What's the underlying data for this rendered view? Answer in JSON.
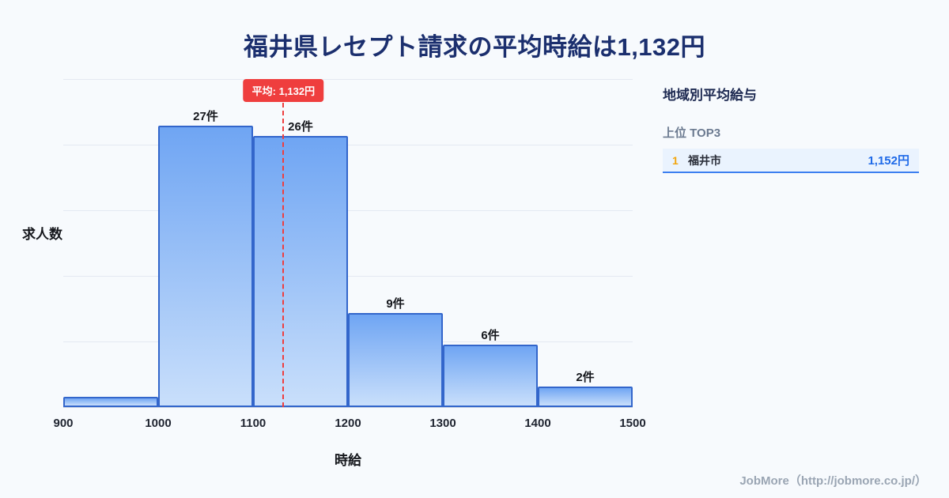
{
  "title": "福井県レセプト請求の平均時給は1,132円",
  "chart_data": {
    "type": "bar",
    "subtype": "histogram",
    "categories": [
      "900-1000",
      "1000-1100",
      "1100-1200",
      "1200-1300",
      "1300-1400",
      "1400-1500"
    ],
    "values": [
      1,
      27,
      26,
      9,
      6,
      2
    ],
    "bar_labels": [
      "",
      "27件",
      "26件",
      "9件",
      "6件",
      "2件"
    ],
    "x_ticks": [
      "900",
      "1000",
      "1100",
      "1200",
      "1300",
      "1400",
      "1500"
    ],
    "xlim": [
      900,
      1500
    ],
    "ylim": [
      0,
      31.5
    ],
    "grid": true,
    "xlabel": "時給",
    "ylabel": "求人数",
    "mean": {
      "value": 1132,
      "label": "平均: 1,132円"
    }
  },
  "sidebar": {
    "heading": "地域別平均給与",
    "subheading": "上位 TOP3",
    "rows": [
      {
        "rank": "1",
        "area": "福井市",
        "salary": "1,152円"
      }
    ]
  },
  "footer": {
    "credit": "JobMore（http://jobmore.co.jp/）"
  },
  "colors": {
    "title": "#1b2f6e",
    "bar_border": "#3366cb",
    "bar_gradient_top": "#6fa5f3",
    "bar_gradient_bottom": "#c9dffb",
    "mean_line": "#ef3e3e",
    "rank_orange": "#f2a50c",
    "salary_blue": "#1f6ae8",
    "row_underline": "#3c7ff0",
    "background": "#f7fafd"
  }
}
